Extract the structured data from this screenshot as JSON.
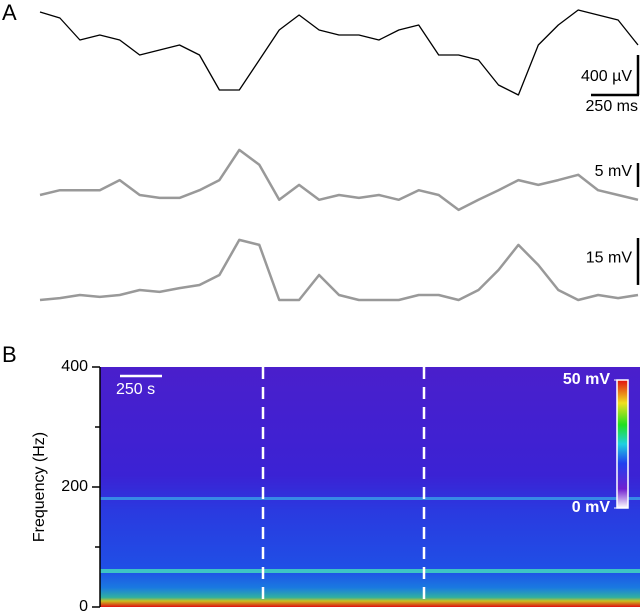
{
  "chart_data": [
    {
      "type": "trace",
      "panel": "A",
      "series": [
        {
          "color": "#000000",
          "values": [
            480,
            420,
            200,
            250,
            200,
            50,
            100,
            150,
            50,
            -300,
            -300,
            0,
            300,
            450,
            300,
            250,
            250,
            200,
            300,
            350,
            50,
            50,
            0,
            -250,
            -350,
            150,
            350,
            500,
            450,
            400,
            150
          ],
          "scale_bar": {
            "value": 400,
            "label": "400 µV"
          }
        },
        {
          "color": "#999999",
          "values": [
            0,
            1.0,
            1.0,
            1.0,
            3.1,
            0,
            -0.6,
            -0.6,
            1.0,
            3.1,
            9.4,
            6.3,
            -1.0,
            2.1,
            -1.0,
            0,
            -0.6,
            0,
            -1.0,
            1.0,
            0,
            -3.1,
            -1.0,
            1.0,
            3.1,
            2.1,
            3.1,
            4.2,
            1.0,
            0,
            -1.0
          ],
          "scale_bar": {
            "value": 5,
            "label": "5 mV"
          }
        },
        {
          "color": "#999999",
          "values": [
            -1.6,
            -1,
            0,
            -0.6,
            0,
            1.6,
            1,
            2.2,
            3.2,
            6.4,
            17.6,
            16,
            -1.6,
            -1.6,
            6.4,
            0,
            -1.6,
            -1.6,
            -1.6,
            0,
            0,
            -1.6,
            1.6,
            8,
            16,
            9.6,
            1.6,
            -1.6,
            0,
            -1,
            0
          ],
          "scale_bar": {
            "value": 15,
            "label": "15 mV"
          }
        }
      ],
      "time_bar": {
        "value": 250,
        "label": "250 ms"
      }
    },
    {
      "type": "spectrogram",
      "panel": "B",
      "ylabel": "Frequency (Hz)",
      "ylim": [
        0,
        400
      ],
      "yticks": [
        0,
        200,
        400
      ],
      "minor_yticks": [
        100,
        300
      ],
      "time_bar": {
        "value": 250,
        "label": "250 s"
      },
      "colorbar": {
        "lim": [
          0,
          50
        ],
        "ticks": [
          {
            "value": 0,
            "label": "0 mV"
          },
          {
            "value": 50,
            "label": "50 mV"
          }
        ]
      }
    }
  ]
}
